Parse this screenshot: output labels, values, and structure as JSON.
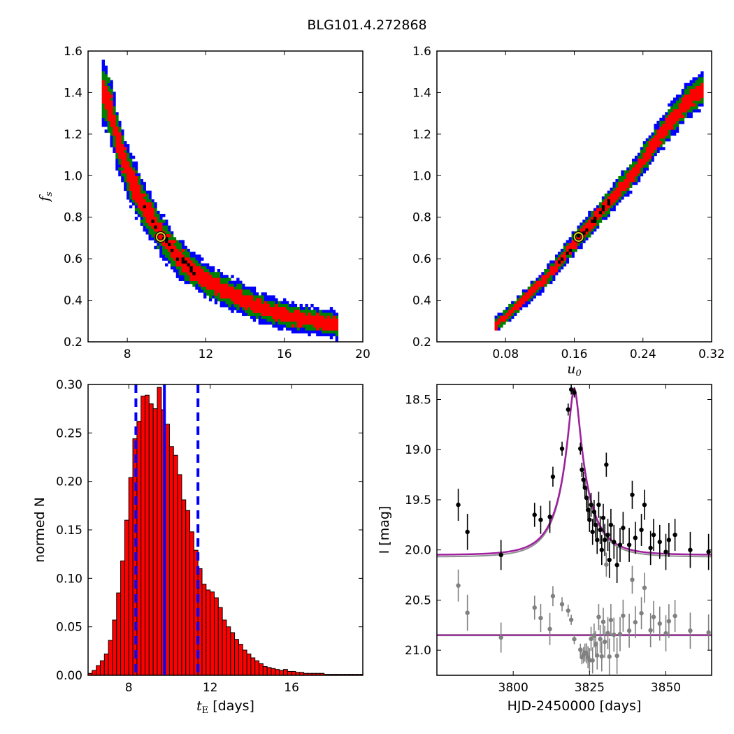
{
  "figure": {
    "title": "BLG101.4.272868"
  },
  "chart_data": [
    {
      "id": "fs-vs-tE",
      "type": "heatmap",
      "xlabel": "",
      "ylabel": {
        "italic": "f",
        "sub": "s"
      },
      "xlim": [
        6,
        20
      ],
      "ylim": [
        0.2,
        1.6
      ],
      "xticks": [
        "8",
        "12",
        "16",
        "20"
      ],
      "yticks": [
        "0.2",
        "0.4",
        "0.6",
        "0.8",
        "1.0",
        "1.2",
        "1.4",
        "1.6"
      ],
      "colors": {
        "outer": "#0000ff",
        "middle": "#008000",
        "inner": "#ff0000",
        "core": "#000000"
      },
      "best_fit": {
        "x": 9.7,
        "y": 0.705
      },
      "banana_curve": [
        [
          6.7,
          1.42
        ],
        [
          7.2,
          1.3
        ],
        [
          7.5,
          1.17
        ],
        [
          7.8,
          1.08
        ],
        [
          8.2,
          0.98
        ],
        [
          8.7,
          0.88
        ],
        [
          9.2,
          0.8
        ],
        [
          9.7,
          0.72
        ],
        [
          10.3,
          0.64
        ],
        [
          11.0,
          0.57
        ],
        [
          11.8,
          0.51
        ],
        [
          12.7,
          0.46
        ],
        [
          13.8,
          0.41
        ],
        [
          14.9,
          0.36
        ],
        [
          16.2,
          0.32
        ],
        [
          17.5,
          0.3
        ],
        [
          18.8,
          0.28
        ]
      ],
      "widths_at": [
        1.42,
        0.28
      ]
    },
    {
      "id": "fs-vs-u0",
      "type": "heatmap",
      "xlabel": {
        "italic": "u",
        "sub": "0"
      },
      "ylabel": "",
      "xlim": [
        0,
        0.32
      ],
      "ylim": [
        0.2,
        1.6
      ],
      "xticks": [
        "0.08",
        "0.16",
        "0.24",
        "0.32"
      ],
      "yticks": [
        "0.2",
        "0.4",
        "0.6",
        "0.8",
        "1.0",
        "1.2",
        "1.4",
        "1.6"
      ],
      "colors": {
        "outer": "#0000ff",
        "middle": "#008000",
        "inner": "#ff0000",
        "core": "#000000"
      },
      "best_fit": {
        "x": 0.165,
        "y": 0.705
      },
      "ridge_curve": [
        [
          0.067,
          0.275
        ],
        [
          0.09,
          0.36
        ],
        [
          0.115,
          0.46
        ],
        [
          0.14,
          0.57
        ],
        [
          0.165,
          0.7
        ],
        [
          0.19,
          0.82
        ],
        [
          0.21,
          0.92
        ],
        [
          0.235,
          1.04
        ],
        [
          0.25,
          1.14
        ],
        [
          0.27,
          1.25
        ],
        [
          0.29,
          1.35
        ],
        [
          0.31,
          1.42
        ]
      ]
    },
    {
      "id": "tE-hist",
      "type": "bar",
      "xlabel": {
        "italic": "t",
        "sub": "E",
        "rest": " [days]"
      },
      "ylabel": "normed N",
      "xlim": [
        6,
        19.5
      ],
      "ylim": [
        0,
        0.3
      ],
      "xticks": [
        "8",
        "12",
        "16"
      ],
      "yticks": [
        "0.00",
        "0.05",
        "0.10",
        "0.15",
        "0.20",
        "0.25",
        "0.30"
      ],
      "bar_color": "#ff0000",
      "median": 9.75,
      "interval": [
        8.35,
        11.4
      ],
      "bin_start": 6.0,
      "bin_width": 0.2,
      "values": [
        0.002,
        0.005,
        0.01,
        0.015,
        0.022,
        0.036,
        0.057,
        0.085,
        0.118,
        0.16,
        0.204,
        0.244,
        0.262,
        0.288,
        0.289,
        0.28,
        0.275,
        0.297,
        0.274,
        0.259,
        0.236,
        0.227,
        0.207,
        0.181,
        0.17,
        0.148,
        0.129,
        0.11,
        0.094,
        0.088,
        0.086,
        0.08,
        0.07,
        0.057,
        0.05,
        0.044,
        0.037,
        0.032,
        0.026,
        0.022,
        0.018,
        0.015,
        0.012,
        0.009,
        0.008,
        0.007,
        0.006,
        0.005,
        0.006,
        0.004,
        0.004,
        0.003,
        0.003,
        0.002,
        0.002,
        0.002,
        0.002,
        0.002,
        0.001,
        0.001,
        0.001,
        0.001,
        0.001,
        0.001,
        0.001,
        0.001,
        0.001,
        0.001
      ]
    },
    {
      "id": "lightcurve",
      "type": "scatter",
      "xlabel": "HJD-2450000 [days]",
      "ylabel": "I [mag]",
      "xlim": [
        3775,
        3865
      ],
      "ylim": [
        21.25,
        18.35
      ],
      "xticks": [
        "3800",
        "3825",
        "3850"
      ],
      "yticks": [
        "18.5",
        "19.0",
        "19.5",
        "20.0",
        "20.5",
        "21.0"
      ],
      "model": {
        "t0": 3820.0,
        "u0": 0.165,
        "tE": 9.7,
        "I_base": 20.05,
        "fs": 0.705,
        "color": "#a020a0"
      },
      "residual_baseline": 20.85,
      "data_color": "#000000",
      "residual_color": "#808080",
      "points": [
        [
          3782,
          19.55,
          0.16
        ],
        [
          3785,
          19.82,
          0.18
        ],
        [
          3796,
          20.05,
          0.15
        ],
        [
          3807,
          19.65,
          0.12
        ],
        [
          3809,
          19.7,
          0.14
        ],
        [
          3812,
          19.67,
          0.16
        ],
        [
          3813,
          19.27,
          0.1
        ],
        [
          3816,
          18.99,
          0.07
        ],
        [
          3818,
          18.6,
          0.06
        ],
        [
          3819,
          18.4,
          0.05
        ],
        [
          3820,
          18.43,
          0.05
        ],
        [
          3822,
          18.99,
          0.06
        ],
        [
          3822.5,
          19.2,
          0.07
        ],
        [
          3823,
          19.3,
          0.08
        ],
        [
          3823.5,
          19.38,
          0.09
        ],
        [
          3824,
          19.48,
          0.1
        ],
        [
          3824.5,
          19.6,
          0.11
        ],
        [
          3825,
          19.7,
          0.12
        ],
        [
          3825.5,
          19.55,
          0.12
        ],
        [
          3826,
          19.82,
          0.13
        ],
        [
          3826.5,
          19.62,
          0.12
        ],
        [
          3827,
          19.75,
          0.13
        ],
        [
          3827.5,
          19.9,
          0.14
        ],
        [
          3828,
          19.55,
          0.13
        ],
        [
          3828.5,
          19.8,
          0.14
        ],
        [
          3829,
          20.0,
          0.15
        ],
        [
          3829.5,
          19.68,
          0.14
        ],
        [
          3830,
          19.9,
          0.16
        ],
        [
          3830.5,
          19.15,
          0.12
        ],
        [
          3831,
          19.85,
          0.16
        ],
        [
          3831.5,
          20.1,
          0.18
        ],
        [
          3832,
          19.75,
          0.16
        ],
        [
          3833,
          19.92,
          0.17
        ],
        [
          3834,
          20.15,
          0.18
        ],
        [
          3835,
          19.95,
          0.17
        ],
        [
          3836,
          19.78,
          0.16
        ],
        [
          3838,
          19.95,
          0.17
        ],
        [
          3839,
          19.45,
          0.14
        ],
        [
          3840,
          19.88,
          0.16
        ],
        [
          3842,
          19.8,
          0.16
        ],
        [
          3843,
          19.55,
          0.15
        ],
        [
          3845,
          19.98,
          0.17
        ],
        [
          3846,
          19.85,
          0.16
        ],
        [
          3848,
          19.92,
          0.17
        ],
        [
          3850,
          20.02,
          0.18
        ],
        [
          3851,
          19.9,
          0.17
        ],
        [
          3853,
          19.85,
          0.16
        ],
        [
          3858,
          20.0,
          0.18
        ],
        [
          3864,
          20.02,
          0.18
        ]
      ]
    }
  ]
}
